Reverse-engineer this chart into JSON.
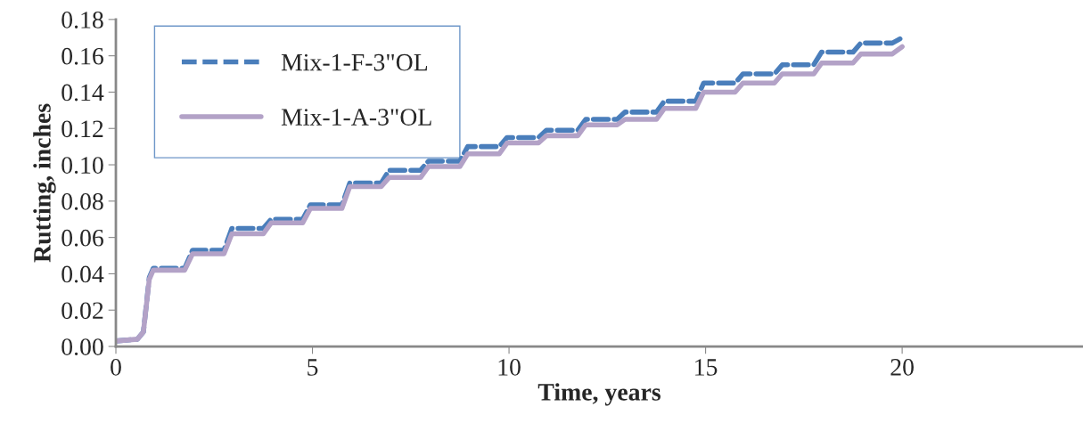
{
  "chart_data": {
    "type": "line",
    "xlabel": "Time, years",
    "ylabel": "Rutting, inches",
    "x": [
      0,
      0.55,
      0.7,
      0.85,
      0.95,
      1.75,
      1.95,
      2.75,
      2.95,
      3.75,
      3.95,
      4.75,
      4.95,
      5.75,
      5.95,
      6.75,
      6.95,
      7.75,
      7.95,
      8.75,
      8.95,
      9.75,
      9.95,
      10.75,
      10.95,
      11.75,
      11.95,
      12.75,
      12.95,
      13.75,
      13.95,
      14.75,
      14.95,
      15.75,
      15.95,
      16.75,
      16.95,
      17.75,
      17.95,
      18.75,
      18.95,
      19.75,
      20.0
    ],
    "series": [
      {
        "name": "Mix-1-F-3\"OL",
        "color": "#4a7ebb",
        "line_style": "dashed",
        "values": [
          0.003,
          0.004,
          0.008,
          0.038,
          0.043,
          0.043,
          0.053,
          0.053,
          0.065,
          0.065,
          0.07,
          0.07,
          0.078,
          0.078,
          0.09,
          0.09,
          0.097,
          0.097,
          0.102,
          0.102,
          0.11,
          0.11,
          0.115,
          0.115,
          0.119,
          0.119,
          0.125,
          0.125,
          0.129,
          0.129,
          0.135,
          0.135,
          0.145,
          0.145,
          0.15,
          0.15,
          0.155,
          0.155,
          0.162,
          0.162,
          0.167,
          0.167,
          0.17
        ]
      },
      {
        "name": "Mix-1-A-3\"OL",
        "color": "#b3a2c7",
        "line_style": "solid",
        "values": [
          0.003,
          0.004,
          0.008,
          0.037,
          0.042,
          0.042,
          0.051,
          0.051,
          0.062,
          0.062,
          0.068,
          0.068,
          0.076,
          0.076,
          0.088,
          0.088,
          0.093,
          0.093,
          0.099,
          0.099,
          0.106,
          0.106,
          0.112,
          0.112,
          0.116,
          0.116,
          0.122,
          0.122,
          0.125,
          0.125,
          0.131,
          0.131,
          0.14,
          0.14,
          0.145,
          0.145,
          0.15,
          0.15,
          0.156,
          0.156,
          0.161,
          0.161,
          0.165
        ]
      }
    ],
    "xlim": [
      0,
      24.6
    ],
    "xticks": [
      0,
      5,
      10,
      15,
      20
    ],
    "ylim": [
      0,
      0.18
    ],
    "yticks": [
      {
        "value": 0,
        "label": "0.00"
      },
      {
        "value": 0.02,
        "label": "0.02"
      },
      {
        "value": 0.04,
        "label": "0.04"
      },
      {
        "value": 0.06,
        "label": "0.06"
      },
      {
        "value": 0.08,
        "label": "0.08"
      },
      {
        "value": 0.1,
        "label": "0.10"
      },
      {
        "value": 0.12,
        "label": "0.12"
      },
      {
        "value": 0.14,
        "label": "0.14"
      },
      {
        "value": 0.16,
        "label": "0.16"
      },
      {
        "value": 0.18,
        "label": "0.18"
      }
    ],
    "grid": false,
    "legend": "top left",
    "marker": "none"
  }
}
